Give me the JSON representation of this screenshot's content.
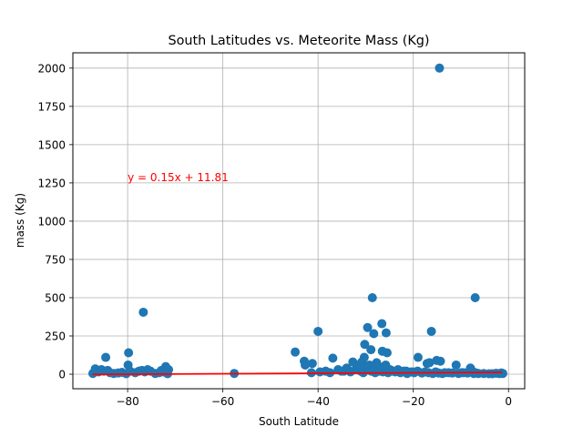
{
  "chart_data": {
    "type": "scatter",
    "title": "South Latitudes vs. Meteorite Mass (Kg)",
    "xlabel": "South Latitude",
    "ylabel": "mass (Kg)",
    "xlim": [
      -91.5,
      3.4
    ],
    "ylim": [
      -95,
      2100
    ],
    "xticks": [
      -80,
      -60,
      -40,
      -20,
      0
    ],
    "xtick_labels": [
      "−80",
      "−60",
      "−40",
      "−20",
      "0"
    ],
    "yticks": [
      0,
      250,
      500,
      750,
      1000,
      1250,
      1500,
      1750,
      2000
    ],
    "ytick_labels": [
      "0",
      "250",
      "500",
      "750",
      "1000",
      "1250",
      "1500",
      "1750",
      "2000"
    ],
    "grid": true,
    "point_color": "#1f77b4",
    "regression": {
      "slope": 0.15,
      "intercept": 11.81,
      "x_range": [
        -87.4,
        -1.3
      ],
      "color": "#ff0000",
      "equation": "y = 0.15x + 11.81",
      "equation_anchor": [
        -80,
        1260
      ]
    },
    "points": {
      "x": [
        -14.5,
        -28.6,
        -7.0,
        -26.6,
        -29.6,
        -40.0,
        -16.2,
        -76.7,
        -28.3,
        -25.7,
        -30.2,
        -28.9,
        -26.5,
        -25.5,
        -44.8,
        -84.6,
        -79.8,
        -19.0,
        -36.9,
        -15.1,
        -14.3,
        -42.9,
        -11.0,
        -17.1,
        -16.6,
        -41.2,
        -72.0,
        -42.7,
        -79.9,
        -8.0,
        -33.6,
        -32.7,
        -31.4,
        -7.6,
        -30.3,
        -27.7,
        -26.0,
        -34.6,
        -24.6,
        -21.5,
        -20.0,
        -23.2,
        -13.4,
        -9.9,
        -5.2,
        -3.4,
        -1.5,
        -87.3,
        -86.8,
        -86.1,
        -85.5,
        -85.0,
        -84.2,
        -83.7,
        -82.9,
        -82.0,
        -81.2,
        -80.3,
        -79.5,
        -78.4,
        -77.6,
        -77.0,
        -76.4,
        -75.8,
        -75.2,
        -74.2,
        -73.4,
        -72.9,
        -72.5,
        -72.1,
        -71.7,
        -71.4,
        -71.6,
        -57.6,
        -41.4,
        -39.6,
        -38.4,
        -37.5,
        -35.8,
        -35.1,
        -34.0,
        -33.2,
        -32.1,
        -31.5,
        -31.0,
        -30.8,
        -30.5,
        -30.0,
        -29.5,
        -29.2,
        -28.8,
        -28.4,
        -28.0,
        -27.6,
        -27.2,
        -26.8,
        -26.4,
        -26.1,
        -25.8,
        -25.3,
        -24.9,
        -24.3,
        -23.8,
        -23.4,
        -22.7,
        -22.0,
        -21.3,
        -20.5,
        -19.8,
        -19.1,
        -18.2,
        -17.5,
        -16.8,
        -15.9,
        -15.3,
        -14.7,
        -13.9,
        -12.6,
        -11.8,
        -10.5,
        -9.4,
        -8.6,
        -7.9,
        -7.3,
        -6.8,
        -6.3,
        -4.1,
        -2.6,
        -1.9,
        -1.2
      ],
      "y": [
        2000,
        500,
        500,
        330,
        305,
        280,
        280,
        405,
        265,
        270,
        195,
        160,
        150,
        140,
        145,
        110,
        140,
        110,
        105,
        90,
        85,
        85,
        60,
        70,
        75,
        70,
        50,
        60,
        60,
        40,
        25,
        80,
        50,
        20,
        110,
        75,
        40,
        20,
        25,
        20,
        15,
        30,
        10,
        10,
        5,
        3,
        8,
        5,
        35,
        15,
        30,
        20,
        25,
        10,
        5,
        8,
        12,
        3,
        20,
        10,
        20,
        25,
        15,
        30,
        20,
        5,
        10,
        25,
        15,
        20,
        8,
        30,
        3,
        5,
        10,
        15,
        20,
        10,
        30,
        20,
        40,
        15,
        30,
        60,
        20,
        80,
        10,
        50,
        30,
        60,
        20,
        40,
        10,
        30,
        20,
        45,
        15,
        25,
        60,
        10,
        30,
        20,
        15,
        25,
        10,
        20,
        5,
        15,
        10,
        20,
        8,
        15,
        10,
        5,
        15,
        8,
        5,
        10,
        8,
        5,
        10,
        8,
        15,
        5,
        8,
        5,
        3,
        6,
        4,
        5
      ]
    }
  }
}
